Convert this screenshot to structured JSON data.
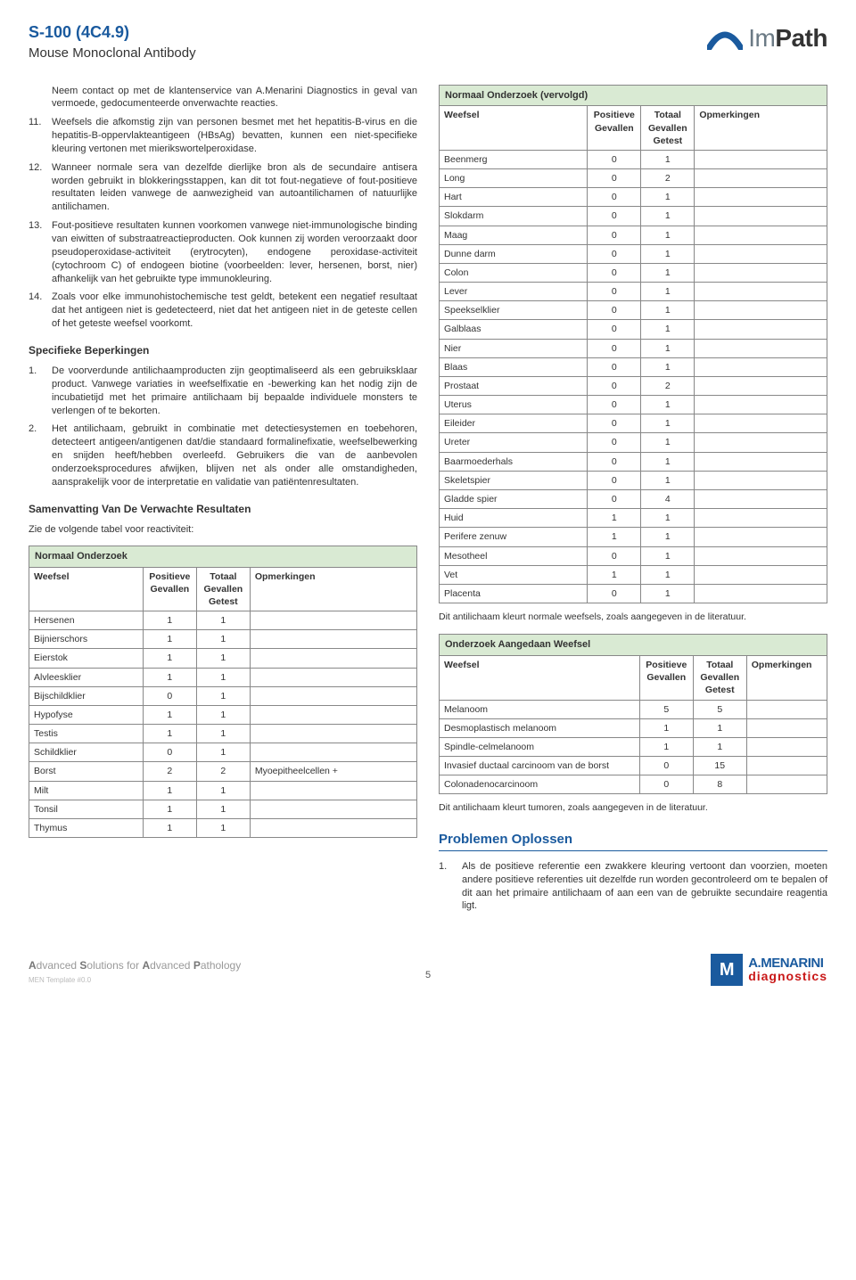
{
  "header": {
    "code": "S-100 (4C4.9)",
    "subtitle": "Mouse Monoclonal Antibody",
    "logo_text_light": "Im",
    "logo_text_bold": "Path"
  },
  "opening_text": "Neem contact op met de klantenservice van A.Menarini Diagnostics in geval van vermoede, gedocumenteerde onverwachte reacties.",
  "items": [
    {
      "num": "11.",
      "text": "Weefsels die afkomstig zijn van personen besmet met het hepatitis-B-virus en die hepatitis-B-oppervlakteantigeen (HBsAg) bevatten, kunnen een niet-specifieke kleuring vertonen met mierikswortelperoxidase."
    },
    {
      "num": "12.",
      "text": "Wanneer normale sera van dezelfde dierlijke bron als de secundaire antisera worden gebruikt in blokkeringsstappen, kan dit tot fout-negatieve of fout-positieve resultaten leiden vanwege de aanwezigheid van autoantilichamen of natuurlijke antilichamen."
    },
    {
      "num": "13.",
      "text": "Fout-positieve resultaten kunnen voorkomen vanwege niet-immunologische binding van eiwitten of substraatreactieproducten. Ook kunnen zij worden veroorzaakt door pseudoperoxidase-activiteit (erytrocyten), endogene peroxidase-activiteit (cytochroom C) of endogeen biotine (voorbeelden: lever, hersenen, borst, nier) afhankelijk van het gebruikte type immunokleuring."
    },
    {
      "num": "14.",
      "text": "Zoals voor elke immunohistochemische test geldt, betekent een negatief resultaat dat het antigeen niet is gedetecteerd, niet dat het antigeen niet in de geteste cellen of het geteste weefsel voorkomt."
    }
  ],
  "spec_title": "Specifieke Beperkingen",
  "spec_items": [
    {
      "num": "1.",
      "text": "De voorverdunde antilichaamproducten zijn geoptimaliseerd als een gebruiksklaar product. Vanwege variaties in weefselfixatie en -bewerking kan het nodig zijn de incubatietijd met het primaire antilichaam bij bepaalde individuele monsters te verlengen of te bekorten."
    },
    {
      "num": "2.",
      "text": "Het antilichaam, gebruikt in combinatie met detectiesystemen en toebehoren, detecteert antigeen/antigenen dat/die standaard formalinefixatie, weefselbewerking en snijden heeft/hebben overleefd. Gebruikers die van de aanbevolen onderzoeksprocedures afwijken, blijven net als onder alle omstandigheden, aansprakelijk voor de interpretatie en validatie van patiëntenresultaten."
    }
  ],
  "summary_title": "Samenvatting Van De Verwachte Resultaten",
  "summary_intro": "Zie de volgende tabel voor reactiviteit:",
  "table_headers": {
    "weefsel": "Weefsel",
    "positive": "Positieve Gevallen",
    "total": "Totaal Gevallen Getest",
    "remarks": "Opmerkingen"
  },
  "table1": {
    "title": "Normaal Onderzoek",
    "rows": [
      {
        "w": "Hersenen",
        "p": "1",
        "t": "1",
        "o": ""
      },
      {
        "w": "Bijnierschors",
        "p": "1",
        "t": "1",
        "o": ""
      },
      {
        "w": "Eierstok",
        "p": "1",
        "t": "1",
        "o": ""
      },
      {
        "w": "Alvleesklier",
        "p": "1",
        "t": "1",
        "o": ""
      },
      {
        "w": "Bijschildklier",
        "p": "0",
        "t": "1",
        "o": ""
      },
      {
        "w": "Hypofyse",
        "p": "1",
        "t": "1",
        "o": ""
      },
      {
        "w": "Testis",
        "p": "1",
        "t": "1",
        "o": ""
      },
      {
        "w": "Schildklier",
        "p": "0",
        "t": "1",
        "o": ""
      },
      {
        "w": "Borst",
        "p": "2",
        "t": "2",
        "o": "Myoepitheelcellen +"
      },
      {
        "w": "Milt",
        "p": "1",
        "t": "1",
        "o": ""
      },
      {
        "w": "Tonsil",
        "p": "1",
        "t": "1",
        "o": ""
      },
      {
        "w": "Thymus",
        "p": "1",
        "t": "1",
        "o": ""
      }
    ]
  },
  "table2": {
    "title": "Normaal Onderzoek (vervolgd)",
    "rows": [
      {
        "w": "Beenmerg",
        "p": "0",
        "t": "1",
        "o": ""
      },
      {
        "w": "Long",
        "p": "0",
        "t": "2",
        "o": ""
      },
      {
        "w": "Hart",
        "p": "0",
        "t": "1",
        "o": ""
      },
      {
        "w": "Slokdarm",
        "p": "0",
        "t": "1",
        "o": ""
      },
      {
        "w": "Maag",
        "p": "0",
        "t": "1",
        "o": ""
      },
      {
        "w": "Dunne darm",
        "p": "0",
        "t": "1",
        "o": ""
      },
      {
        "w": "Colon",
        "p": "0",
        "t": "1",
        "o": ""
      },
      {
        "w": "Lever",
        "p": "0",
        "t": "1",
        "o": ""
      },
      {
        "w": "Speekselklier",
        "p": "0",
        "t": "1",
        "o": ""
      },
      {
        "w": "Galblaas",
        "p": "0",
        "t": "1",
        "o": ""
      },
      {
        "w": "Nier",
        "p": "0",
        "t": "1",
        "o": ""
      },
      {
        "w": "Blaas",
        "p": "0",
        "t": "1",
        "o": ""
      },
      {
        "w": "Prostaat",
        "p": "0",
        "t": "2",
        "o": ""
      },
      {
        "w": "Uterus",
        "p": "0",
        "t": "1",
        "o": ""
      },
      {
        "w": "Eileider",
        "p": "0",
        "t": "1",
        "o": ""
      },
      {
        "w": "Ureter",
        "p": "0",
        "t": "1",
        "o": ""
      },
      {
        "w": "Baarmoederhals",
        "p": "0",
        "t": "1",
        "o": ""
      },
      {
        "w": "Skeletspier",
        "p": "0",
        "t": "1",
        "o": ""
      },
      {
        "w": "Gladde spier",
        "p": "0",
        "t": "4",
        "o": ""
      },
      {
        "w": "Huid",
        "p": "1",
        "t": "1",
        "o": ""
      },
      {
        "w": "Perifere zenuw",
        "p": "1",
        "t": "1",
        "o": ""
      },
      {
        "w": "Mesotheel",
        "p": "0",
        "t": "1",
        "o": ""
      },
      {
        "w": "Vet",
        "p": "1",
        "t": "1",
        "o": ""
      },
      {
        "w": "Placenta",
        "p": "0",
        "t": "1",
        "o": ""
      }
    ]
  },
  "table2_footnote": "Dit antilichaam kleurt normale weefsels, zoals aangegeven in de literatuur.",
  "table3": {
    "title": "Onderzoek Aangedaan Weefsel",
    "rows": [
      {
        "w": "Melanoom",
        "p": "5",
        "t": "5",
        "o": ""
      },
      {
        "w": "Desmoplastisch melanoom",
        "p": "1",
        "t": "1",
        "o": ""
      },
      {
        "w": "Spindle-celmelanoom",
        "p": "1",
        "t": "1",
        "o": ""
      },
      {
        "w": "Invasief ductaal carcinoom van de borst",
        "p": "0",
        "t": "15",
        "o": ""
      },
      {
        "w": "Colonadenocarcinoom",
        "p": "0",
        "t": "8",
        "o": ""
      }
    ]
  },
  "table3_footnote": "Dit antilichaam kleurt tumoren, zoals aangegeven in de literatuur.",
  "problems_title": "Problemen Oplossen",
  "problems_items": [
    {
      "num": "1.",
      "text": "Als de positieve referentie een zwakkere kleuring vertoont dan voorzien, moeten andere positieve referenties uit dezelfde run worden gecontroleerd om te bepalen of dit aan het primaire antilichaam of aan een van de gebruikte secundaire reagentia ligt."
    }
  ],
  "footer": {
    "tagline_a": "A",
    "tagline_dvanced": "dvanced ",
    "tagline_s": "S",
    "tagline_olutions": "olutions for ",
    "tagline_a2": "A",
    "tagline_dvanced2": "dvanced ",
    "tagline_p": "P",
    "tagline_athology": "athology",
    "page": "5",
    "logo_m": "M",
    "brand1": "A.MENARINI",
    "brand2": "diagnostics",
    "template": "MEN Template #0.0"
  }
}
